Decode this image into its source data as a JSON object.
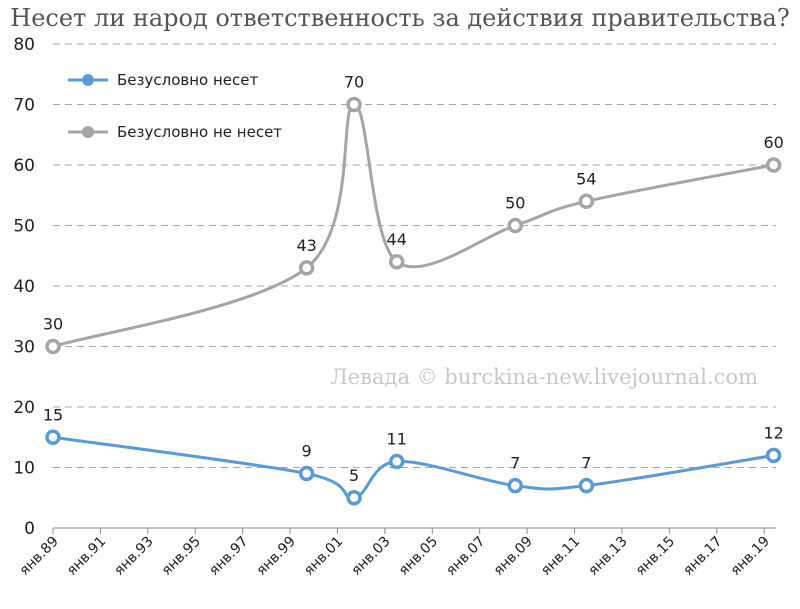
{
  "chart_data": {
    "type": "line",
    "title": "Несет ли народ ответственность за действия правительства?",
    "xlabel": "",
    "ylabel": "",
    "ylim": [
      0,
      80
    ],
    "yticks": [
      0,
      10,
      20,
      30,
      40,
      50,
      60,
      70,
      80
    ],
    "x_axis": {
      "start": 1989,
      "end": 2019.5,
      "ticks": [
        1989,
        1991,
        1993,
        1995,
        1997,
        1999,
        2001,
        2003,
        2005,
        2007,
        2009,
        2011,
        2013,
        2015,
        2017,
        2019
      ],
      "tick_labels": [
        "янв.89",
        "янв.91",
        "янв.93",
        "янв.95",
        "янв.97",
        "янв.99",
        "янв.01",
        "янв.03",
        "янв.05",
        "янв.07",
        "янв.09",
        "янв.11",
        "янв.13",
        "янв.15",
        "янв.17",
        "янв.19"
      ]
    },
    "grid": "horizontal dashed",
    "legend_position": "top-left",
    "watermark": "Левада © burckina-new.livejournal.com",
    "series": [
      {
        "name": "Безусловно несет",
        "color": "#5b9bd5",
        "x": [
          1989,
          1999.7,
          2001.7,
          2003.5,
          2008.5,
          2011.5,
          2019.4
        ],
        "values": [
          15,
          9,
          5,
          11,
          7,
          7,
          12
        ]
      },
      {
        "name": "Безусловно не несет",
        "color": "#a5a5a5",
        "x": [
          1989,
          1999.7,
          2001.7,
          2003.5,
          2008.5,
          2011.5,
          2019.4
        ],
        "values": [
          30,
          43,
          70,
          44,
          50,
          54,
          60
        ]
      }
    ]
  }
}
